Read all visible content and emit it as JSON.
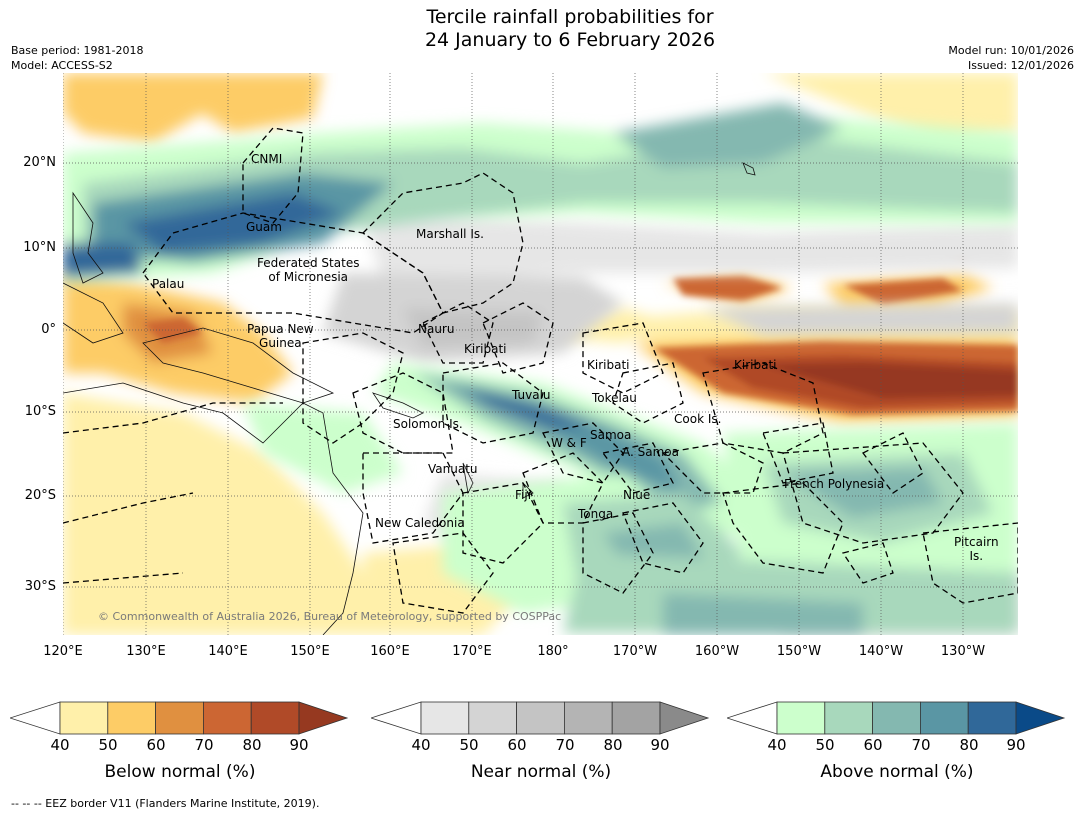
{
  "title": {
    "line1": "Tercile rainfall probabilities for",
    "line2": "24 January to 6 February 2026"
  },
  "meta": {
    "base_period": "Base period: 1981-2018",
    "model": "Model: ACCESS-S2",
    "model_run": "Model run: 10/01/2026",
    "issued": "Issued: 12/01/2026"
  },
  "axes": {
    "lat_labels": [
      "20°N",
      "10°N",
      "0°",
      "10°S",
      "20°S",
      "30°S"
    ],
    "lon_labels": [
      "120°E",
      "130°E",
      "140°E",
      "150°E",
      "160°E",
      "170°E",
      "180°",
      "170°W",
      "160°W",
      "150°W",
      "140°W",
      "130°W"
    ]
  },
  "places": {
    "cnmi": "CNMI",
    "guam": "Guam",
    "palau": "Palau",
    "fsm": "Federated States\nof Micronesia",
    "marshall": "Marshall Is.",
    "png": "Papua New\nGuinea",
    "nauru": "Nauru",
    "kiribati_w": "Kiribati",
    "kiribati_c": "Kiribati",
    "kiribati_e": "Kiribati",
    "tuvalu": "Tuvalu",
    "tokelau": "Tokelau",
    "cook": "Cook Is.",
    "solomon": "Solomon Is.",
    "samoa": "Samoa",
    "wf": "W & F",
    "asamoa": "A. Samoa",
    "vanuatu": "Vanuatu",
    "fiji": "Fiji",
    "niue": "Niue",
    "tonga": "Tonga",
    "french_polynesia": "French Polynesia",
    "new_caledonia": "New Caledonia",
    "pitcairn": "Pitcairn\nIs."
  },
  "copyright": "© Commonwealth of Australia 2026, Bureau of Meteorology, supported by COSPPac",
  "colorbars": {
    "ticks": [
      "40",
      "50",
      "60",
      "70",
      "80",
      "90"
    ],
    "below": {
      "title": "Below normal (%)",
      "colors": [
        "#fff0aa",
        "#fdcc66",
        "#e09040",
        "#cc6633",
        "#b04a28",
        "#963920"
      ]
    },
    "near": {
      "title": "Near normal (%)",
      "colors": [
        "#e6e6e6",
        "#d4d4d4",
        "#c4c4c4",
        "#b4b4b4",
        "#a3a3a3",
        "#8a8a8a"
      ]
    },
    "above": {
      "title": "Above normal (%)",
      "colors": [
        "#ccffcc",
        "#a8d8bc",
        "#84b8b0",
        "#5a96a4",
        "#306899",
        "#0a4a88"
      ]
    }
  },
  "footer": "--  --  -- EEZ border V11 (Flanders Marine Institute, 2019)."
}
